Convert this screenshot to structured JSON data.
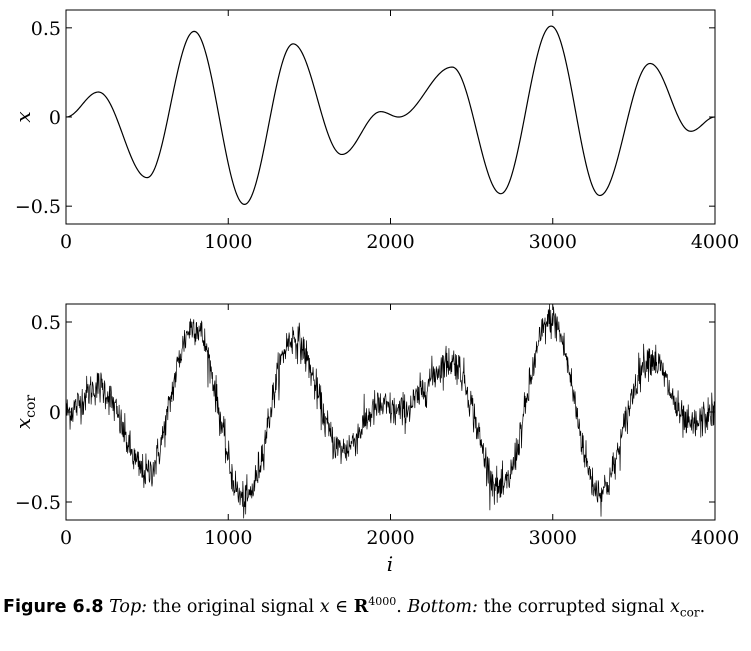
{
  "chart_data": [
    {
      "type": "line",
      "ylabel": "x",
      "xlim": [
        0,
        4000
      ],
      "ylim": [
        -0.6,
        0.6
      ],
      "x_ticks": [
        "0",
        "1000",
        "2000",
        "3000",
        "4000"
      ],
      "y_ticks": [
        "0.5",
        "0",
        "−0.5"
      ],
      "x_tick_values": [
        0,
        1000,
        2000,
        3000,
        4000
      ],
      "y_tick_values": [
        0.5,
        0,
        -0.5
      ],
      "grid": false,
      "series": [
        {
          "x": [
            0,
            200,
            500,
            790,
            1100,
            1400,
            1700,
            1940,
            2050,
            2380,
            2680,
            2990,
            3290,
            3600,
            3850,
            4000
          ],
          "values": [
            0.0,
            0.14,
            -0.34,
            0.48,
            -0.49,
            0.41,
            -0.21,
            0.03,
            0.0,
            0.28,
            -0.43,
            0.51,
            -0.44,
            0.3,
            -0.08,
            0.0
          ]
        }
      ]
    },
    {
      "type": "line",
      "ylabel": "x",
      "ylabel_subscript": "cor",
      "xlabel": "i",
      "xlim": [
        0,
        4000
      ],
      "ylim": [
        -0.6,
        0.6
      ],
      "x_ticks": [
        "0",
        "1000",
        "2000",
        "3000",
        "4000"
      ],
      "y_ticks": [
        "0.5",
        "0",
        "−0.5"
      ],
      "x_tick_values": [
        0,
        1000,
        2000,
        3000,
        4000
      ],
      "y_tick_values": [
        0.5,
        0,
        -0.5
      ],
      "grid": false,
      "noise_amplitude": 0.05,
      "series": [
        {
          "x": [
            0,
            200,
            500,
            790,
            1100,
            1400,
            1700,
            1940,
            2050,
            2380,
            2680,
            2990,
            3290,
            3600,
            3850,
            4000
          ],
          "values": [
            0.0,
            0.14,
            -0.34,
            0.48,
            -0.49,
            0.41,
            -0.21,
            0.03,
            0.0,
            0.28,
            -0.43,
            0.51,
            -0.44,
            0.3,
            -0.08,
            0.0
          ]
        }
      ]
    }
  ],
  "caption": {
    "label": "Figure 6.8",
    "top_word": "Top:",
    "text1": "the original signal",
    "math_x": "x",
    "in_symbol": "∈",
    "real_symbol": "R",
    "exponent": "4000",
    "period": ".",
    "bottom_word": "Bottom:",
    "text2": "the corrupted signal",
    "math_xcor": "x",
    "cor_subscript": "cor",
    "end": "."
  }
}
